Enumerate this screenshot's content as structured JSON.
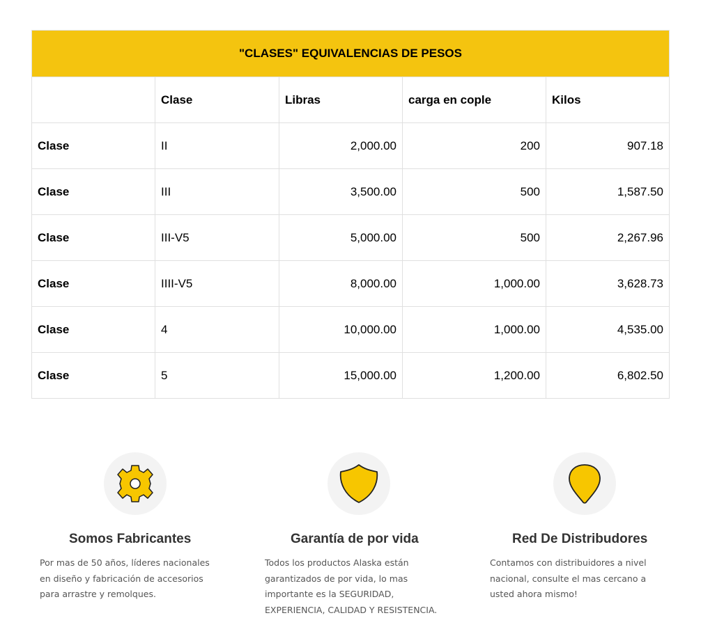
{
  "table": {
    "title": "\"CLASES\" EQUIVALENCIAS DE PESOS",
    "headers": [
      "",
      "Clase",
      "Libras",
      "carga en cople",
      "Kilos"
    ],
    "rows": [
      [
        "Clase",
        "II",
        "2,000.00",
        "200",
        "907.18"
      ],
      [
        "Clase",
        "III",
        "3,500.00",
        "500",
        "1,587.50"
      ],
      [
        "Clase",
        "III-V5",
        "5,000.00",
        "500",
        "2,267.96"
      ],
      [
        "Clase",
        "IIII-V5",
        "8,000.00",
        "1,000.00",
        "3,628.73"
      ],
      [
        "Clase",
        "4",
        "10,000.00",
        "1,000.00",
        "4,535.00"
      ],
      [
        "Clase",
        "5",
        "15,000.00",
        "1,200.00",
        "6,802.50"
      ]
    ],
    "header_color": "#f4c40f"
  },
  "features": [
    {
      "icon": "gear-icon",
      "title": "Somos Fabricantes",
      "lines": [
        "Por mas de 50 años, líderes nacionales",
        "en diseño y fabricación de accesorios",
        "para arrastre y remolques."
      ]
    },
    {
      "icon": "shield-icon",
      "title": "Garantía de por vida",
      "lines": [
        "Todos los productos Alaska están",
        "garantizados de por vida, lo mas",
        "importante es la SEGURIDAD,",
        "EXPERIENCIA, CALIDAD Y RESISTENCIA."
      ]
    },
    {
      "icon": "map-pin-icon",
      "title": "Red De Distribudores",
      "lines": [
        "Contamos con distribuidores a nivel",
        "nacional, consulte el mas cercano a",
        "usted ahora mismo!"
      ]
    }
  ]
}
